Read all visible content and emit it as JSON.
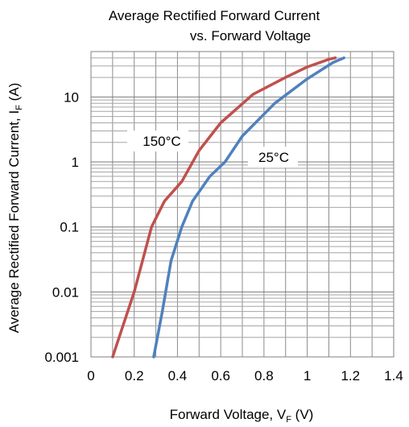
{
  "chart_data": {
    "type": "line",
    "title_line1": "Average Rectified Forward Current",
    "title_line2": "vs. Forward Voltage",
    "xlabel": {
      "main": "Forward Voltage, V",
      "sub": "F",
      "unit": " (V)"
    },
    "ylabel": {
      "main": "Average Rectified Forward Current, I",
      "sub": "F",
      "unit": " (A)"
    },
    "xlim": [
      0,
      1.4
    ],
    "ylim": [
      0.001,
      50
    ],
    "yscale": "log",
    "grid": true,
    "x_ticks": [
      {
        "value": 0,
        "label": "0"
      },
      {
        "value": 0.2,
        "label": "0.2"
      },
      {
        "value": 0.4,
        "label": "0.4"
      },
      {
        "value": 0.6,
        "label": "0.6"
      },
      {
        "value": 0.8,
        "label": "0.8"
      },
      {
        "value": 1.0,
        "label": "1"
      },
      {
        "value": 1.2,
        "label": "1.2"
      },
      {
        "value": 1.4,
        "label": "1.4"
      }
    ],
    "y_ticks": [
      {
        "value": 0.001,
        "label": "0.001"
      },
      {
        "value": 0.01,
        "label": "0.01"
      },
      {
        "value": 0.1,
        "label": "0.1"
      },
      {
        "value": 1,
        "label": "1"
      },
      {
        "value": 10,
        "label": "10"
      }
    ],
    "series": [
      {
        "name": "150°C",
        "color": "#c0504d",
        "x": [
          0.1,
          0.2,
          0.28,
          0.34,
          0.42,
          0.5,
          0.6,
          0.75,
          0.9,
          1.0,
          1.1,
          1.13
        ],
        "y": [
          0.001,
          0.01,
          0.1,
          0.25,
          0.5,
          1.5,
          4.0,
          11,
          20,
          29,
          38,
          40
        ]
      },
      {
        "name": "25°C",
        "color": "#4f81bd",
        "x": [
          0.29,
          0.33,
          0.37,
          0.42,
          0.47,
          0.55,
          0.62,
          0.7,
          0.85,
          1.0,
          1.12,
          1.17
        ],
        "y": [
          0.001,
          0.005,
          0.03,
          0.1,
          0.25,
          0.6,
          1.0,
          2.5,
          8.0,
          19,
          34,
          40
        ]
      }
    ]
  }
}
